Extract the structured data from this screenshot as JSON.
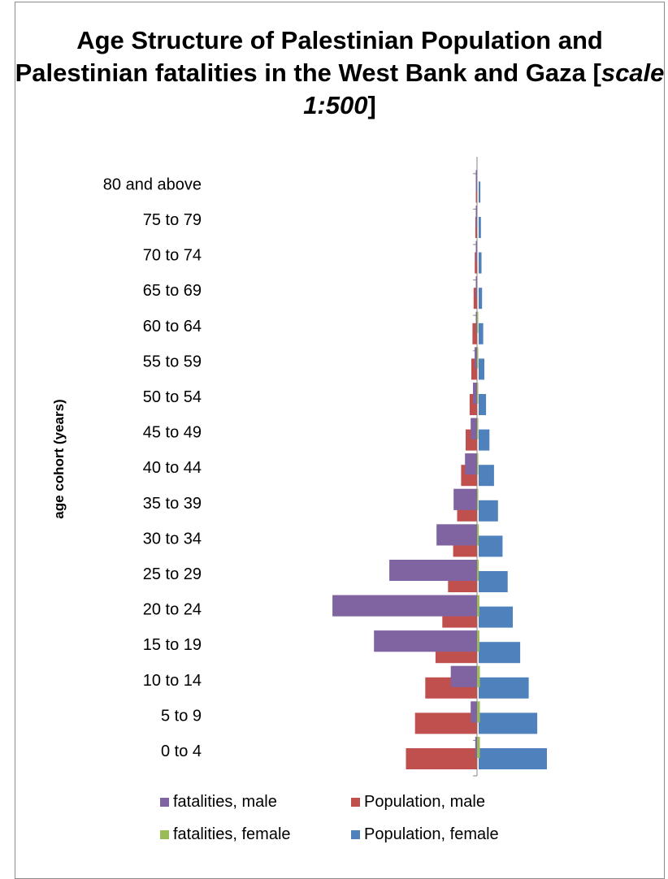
{
  "chart_data": {
    "type": "bar",
    "orientation": "horizontal",
    "title_prefix": "Age Structure of Palestinian Population and Palestinian fatalities in the West Bank and Gaza [",
    "title_scale": "scale 1:500",
    "title_suffix": "]",
    "ylabel": "age cohort (years)",
    "categories": [
      "0 to 4",
      "5 to 9",
      "10 to 14",
      "15 to 19",
      "20 to 24",
      "25 to 29",
      "30 to 34",
      "35 to 39",
      "40 to 44",
      "45 to 49",
      "50 to 54",
      "55 to 59",
      "60 to 64",
      "65 to 69",
      "70 to 74",
      "75 to 79",
      "80 and above"
    ],
    "xlim": [
      -410,
      260
    ],
    "grid": false,
    "legend_position": "bottom",
    "series": [
      {
        "name": "fatalities, male",
        "color": "#8064a2",
        "side": "left",
        "values": [
          3,
          11,
          46,
          181,
          254,
          154,
          71,
          41,
          21,
          11,
          7,
          4,
          2,
          2,
          1,
          1,
          1
        ]
      },
      {
        "name": "Population, male",
        "color": "#c0504d",
        "side": "left",
        "values": [
          125,
          109,
          91,
          73,
          61,
          51,
          42,
          35,
          28,
          20,
          13,
          10,
          8,
          6,
          4,
          3,
          2
        ]
      },
      {
        "name": "fatalities, female",
        "color": "#9bbb59",
        "side": "right",
        "values": [
          5,
          5,
          5,
          4,
          4,
          3,
          3,
          2,
          2,
          2,
          1,
          1,
          1,
          0,
          0,
          0,
          0
        ]
      },
      {
        "name": "Population, female",
        "color": "#4f81bd",
        "side": "right",
        "values": [
          120,
          103,
          88,
          73,
          60,
          51,
          42,
          34,
          27,
          19,
          13,
          10,
          8,
          6,
          5,
          4,
          3
        ]
      }
    ]
  }
}
